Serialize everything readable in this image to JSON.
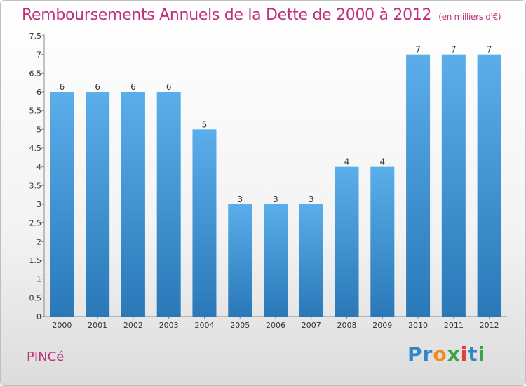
{
  "header": {
    "title": "Remboursements Annuels de la Dette de 2000 à 2012",
    "unit": "(en milliers d'€)"
  },
  "footer": {
    "commune": "PINCé",
    "logo": "Proxiti"
  },
  "colors": {
    "title": "#c0307a",
    "bar_top": "#5aaeea",
    "bar_bottom": "#2a78b8"
  },
  "chart_data": {
    "type": "bar",
    "title": "Remboursements Annuels de la Dette de 2000 à 2012",
    "categories": [
      "2000",
      "2001",
      "2002",
      "2003",
      "2004",
      "2005",
      "2006",
      "2007",
      "2008",
      "2009",
      "2010",
      "2011",
      "2012"
    ],
    "values": [
      6,
      6,
      6,
      6,
      5,
      3,
      3,
      3,
      4,
      4,
      7,
      7,
      7
    ],
    "ylim": [
      0,
      7.5
    ],
    "yticks": [
      "0",
      "0.5",
      "1",
      "1.5",
      "2",
      "2.5",
      "3",
      "3.5",
      "4",
      "4.5",
      "5",
      "5.5",
      "6",
      "6.5",
      "7",
      "7.5"
    ],
    "grid": false,
    "data_labels": true
  }
}
